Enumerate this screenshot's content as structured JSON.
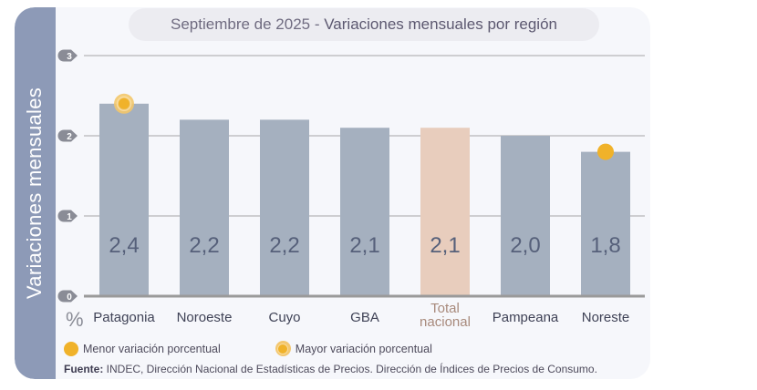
{
  "title": {
    "prefix": "Septiembre de 2025",
    "separator": " - ",
    "main": "Variaciones mensuales por región"
  },
  "side_label": "Variaciones  mensuales",
  "unit_label": "%",
  "legend": {
    "min_label": "Menor variación porcentual",
    "max_label": "Mayor variación porcentual"
  },
  "source": {
    "label": "Fuente:",
    "text": " INDEC, Dirección Nacional de Estadísticas de Precios. Dirección de Índices de Precios de Consumo."
  },
  "colors": {
    "bar": "#a5b0bf",
    "bar_total": "#e8cdbd",
    "value_text": "#56607a",
    "highlight": "#f0b22a",
    "grid": "#8b8b8b",
    "tick_badge": "#8a8c96"
  },
  "chart_data": {
    "type": "bar",
    "title": "Septiembre de 2025 - Variaciones mensuales por región",
    "xlabel": "",
    "ylabel": "Variaciones mensuales (%)",
    "ylim": [
      0,
      3
    ],
    "yticks": [
      0,
      1,
      2,
      3
    ],
    "grid": true,
    "categories": [
      "Patagonia",
      "Noroeste",
      "Cuyo",
      "GBA",
      "Total nacional",
      "Pampeana",
      "Noreste"
    ],
    "category_lines": [
      [
        "Patagonia"
      ],
      [
        "Noroeste"
      ],
      [
        "Cuyo"
      ],
      [
        "GBA"
      ],
      [
        "Total",
        "nacional"
      ],
      [
        "Pampeana"
      ],
      [
        "Noreste"
      ]
    ],
    "values": [
      2.4,
      2.2,
      2.2,
      2.1,
      2.1,
      2.0,
      1.8
    ],
    "value_labels": [
      "2,4",
      "2,2",
      "2,2",
      "2,1",
      "2,1",
      "2,0",
      "1,8"
    ],
    "highlighted_category": "Total nacional",
    "markers": [
      {
        "category": "Patagonia",
        "type": "max",
        "label": "Mayor variación porcentual"
      },
      {
        "category": "Noreste",
        "type": "min",
        "label": "Menor variación porcentual"
      }
    ],
    "legend_position": "bottom-left"
  }
}
